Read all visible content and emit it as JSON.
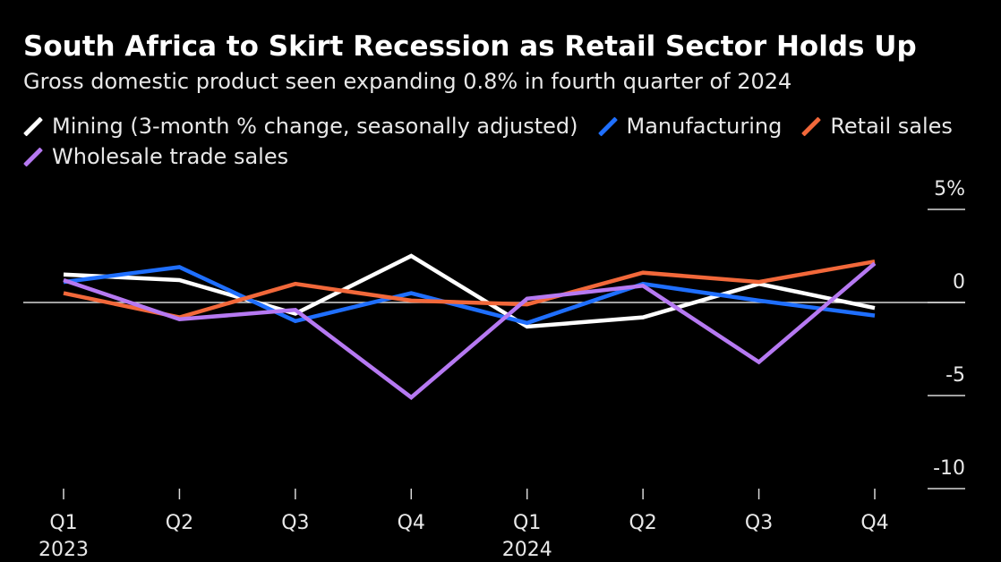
{
  "title": "South Africa to Skirt Recession as Retail Sector Holds Up",
  "subtitle": "Gross domestic product seen expanding 0.8% in fourth quarter of 2024",
  "chart_data": {
    "type": "line",
    "x": [
      "Q1",
      "Q2",
      "Q3",
      "Q4",
      "Q1",
      "Q2",
      "Q3",
      "Q4"
    ],
    "x_year_labels": [
      {
        "index": 0,
        "label": "2023"
      },
      {
        "index": 4,
        "label": "2024"
      }
    ],
    "y_ticks": [
      5,
      0,
      -5,
      -10
    ],
    "y_tick_labels": [
      "5%",
      "0",
      "-5",
      "-10"
    ],
    "ylim": [
      -10,
      5
    ],
    "zero_line": true,
    "legend_position": "top",
    "series": [
      {
        "name": "Mining (3-month % change, seasonally adjusted)",
        "color": "#ffffff",
        "values": [
          1.5,
          1.2,
          -0.6,
          2.5,
          -1.3,
          -0.8,
          1.0,
          -0.3
        ]
      },
      {
        "name": "Manufacturing",
        "color": "#1f6fff",
        "values": [
          1.1,
          1.9,
          -1.0,
          0.5,
          -1.1,
          1.0,
          0.1,
          -0.7
        ]
      },
      {
        "name": "Retail sales",
        "color": "#f2683a",
        "values": [
          0.5,
          -0.8,
          1.0,
          0.1,
          -0.1,
          1.6,
          1.1,
          2.2
        ]
      },
      {
        "name": "Wholesale trade sales",
        "color": "#b679f2",
        "values": [
          1.2,
          -0.9,
          -0.4,
          -5.1,
          0.2,
          0.9,
          -3.2,
          2.1
        ]
      }
    ]
  }
}
